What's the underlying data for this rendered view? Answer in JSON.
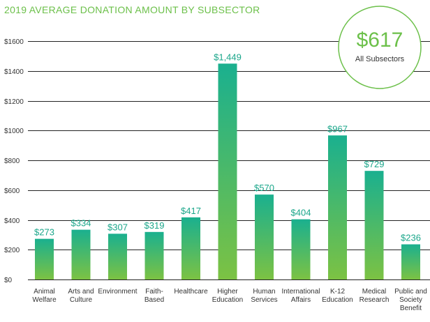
{
  "title": "2019 AVERAGE DONATION AMOUNT BY SUBSECTOR",
  "callout": {
    "value": "$617",
    "label": "All Subsectors"
  },
  "colors": {
    "bar_top": "#1ab08f",
    "bar_bottom": "#7cc243",
    "accent": "#6cc04a",
    "value_label": "#1aa68a"
  },
  "chart_data": {
    "type": "bar",
    "title": "2019 AVERAGE DONATION AMOUNT BY SUBSECTOR",
    "xlabel": "",
    "ylabel": "",
    "ylim": [
      0,
      1600
    ],
    "yticks": [
      0,
      200,
      400,
      600,
      800,
      1000,
      1200,
      1400,
      1600
    ],
    "ytick_labels": [
      "$0",
      "$200",
      "$400",
      "$600",
      "$800",
      "$1000",
      "$1200",
      "$1400",
      "$1600"
    ],
    "grid": true,
    "categories": [
      [
        "Animal",
        "Welfare"
      ],
      [
        "Arts and",
        "Culture"
      ],
      [
        "Environment"
      ],
      [
        "Faith-",
        "Based"
      ],
      [
        "Healthcare"
      ],
      [
        "Higher",
        "Education"
      ],
      [
        "Human",
        "Services"
      ],
      [
        "International",
        "Affairs"
      ],
      [
        "K-12",
        "Education"
      ],
      [
        "Medical",
        "Research"
      ],
      [
        "Public and",
        "Society",
        "Benefit"
      ]
    ],
    "values": [
      273,
      334,
      307,
      319,
      417,
      1449,
      570,
      404,
      967,
      729,
      236
    ],
    "value_labels": [
      "$273",
      "$334",
      "$307",
      "$319",
      "$417",
      "$1,449",
      "$570",
      "$404",
      "$967",
      "$729",
      "$236"
    ]
  }
}
